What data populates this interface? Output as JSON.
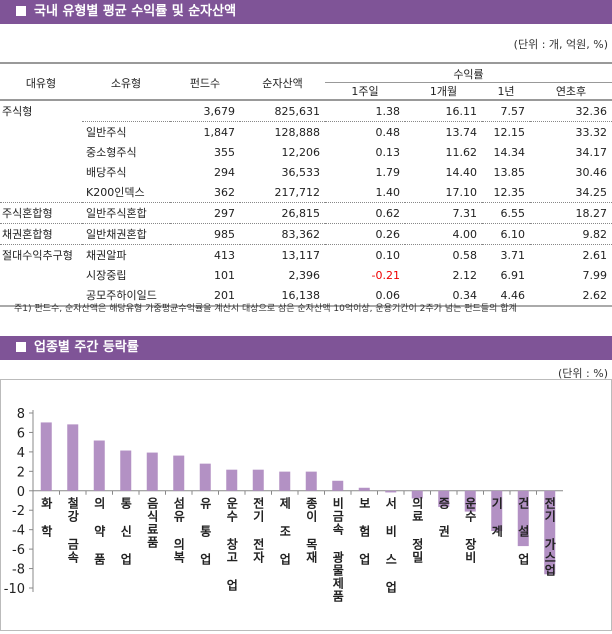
{
  "section1": {
    "title": "국내 유형별 평균 수익률 및 순자산액",
    "unit": "(단위 : 개, 억원, %)",
    "headers": {
      "major": "대유형",
      "minor": "소유형",
      "funds": "펀드수",
      "assets": "순자산액",
      "returns": "수익률",
      "w1": "1주일",
      "m1": "1개월",
      "y1": "1년",
      "ytd": "연초후"
    },
    "rows": [
      {
        "major": "주식형",
        "minor": "",
        "funds": "3,679",
        "assets": "825,631",
        "w1": "1.38",
        "m1": "16.11",
        "y1": "7.57",
        "ytd": "32.36"
      },
      {
        "major": "",
        "minor": "일반주식",
        "funds": "1,847",
        "assets": "128,888",
        "w1": "0.48",
        "m1": "13.74",
        "y1": "12.15",
        "ytd": "33.32"
      },
      {
        "major": "",
        "minor": "중소형주식",
        "funds": "355",
        "assets": "12,206",
        "w1": "0.13",
        "m1": "11.62",
        "y1": "14.34",
        "ytd": "34.17"
      },
      {
        "major": "",
        "minor": "배당주식",
        "funds": "294",
        "assets": "36,533",
        "w1": "1.79",
        "m1": "14.40",
        "y1": "13.85",
        "ytd": "30.46"
      },
      {
        "major": "",
        "minor": "K200인덱스",
        "funds": "362",
        "assets": "217,712",
        "w1": "1.40",
        "m1": "17.10",
        "y1": "12.35",
        "ytd": "34.25"
      },
      {
        "major": "주식혼합형",
        "minor": "일반주식혼합",
        "funds": "297",
        "assets": "26,815",
        "w1": "0.62",
        "m1": "7.31",
        "y1": "6.55",
        "ytd": "18.27"
      },
      {
        "major": "채권혼합형",
        "minor": "일반채권혼합",
        "funds": "985",
        "assets": "83,362",
        "w1": "0.26",
        "m1": "4.00",
        "y1": "6.10",
        "ytd": "9.82"
      },
      {
        "major": "절대수익추구형",
        "minor": "채권알파",
        "funds": "413",
        "assets": "13,117",
        "w1": "0.10",
        "m1": "0.58",
        "y1": "3.71",
        "ytd": "2.61"
      },
      {
        "major": "",
        "minor": "시장중립",
        "funds": "101",
        "assets": "2,396",
        "w1": "-0.21",
        "m1": "2.12",
        "y1": "6.91",
        "ytd": "7.99"
      },
      {
        "major": "",
        "minor": "공모주하이일드",
        "funds": "201",
        "assets": "16,138",
        "w1": "0.06",
        "m1": "0.34",
        "y1": "4.46",
        "ytd": "2.62"
      }
    ],
    "note": "주1) 펀드수, 순자산액은 해당유형 가중평균수익률을 계산시 대상으로 삼은 순자산액 10억이상, 운용기간이 2주가 넘는 펀드들의 합계",
    "negative_color": "#e00000"
  },
  "section2": {
    "title": "업종별 주간 등락률",
    "unit": "(단위 : %)"
  },
  "chart_data": {
    "type": "bar",
    "bar_color": "#b391c4",
    "categories": [
      "화 학",
      "철강 금속",
      "의 약 품",
      "통 신 업",
      "음식료품",
      "섬유 의복",
      "유 통 업",
      "운수 창고 업",
      "전기 전자",
      "제 조 업",
      "종이 목재",
      "비금속 광물제품",
      "보 험 업",
      "서 비 스 업",
      "의료 정밀",
      "증 권",
      "운수 장비",
      "기 계",
      "건 설 업",
      "전기 가스업"
    ],
    "values": [
      7.03,
      6.83,
      5.17,
      4.14,
      3.93,
      3.62,
      2.79,
      2.17,
      2.17,
      1.97,
      1.97,
      1.03,
      0.31,
      -0.17,
      -0.79,
      -1.66,
      -2.14,
      -4.14,
      -5.69,
      -8.59
    ],
    "ylim": [
      -10,
      8
    ],
    "yticks": [
      "8",
      "6",
      "4",
      "2",
      "0",
      "-2",
      "-4",
      "-6",
      "-8",
      "-10"
    ],
    "grid": false
  }
}
